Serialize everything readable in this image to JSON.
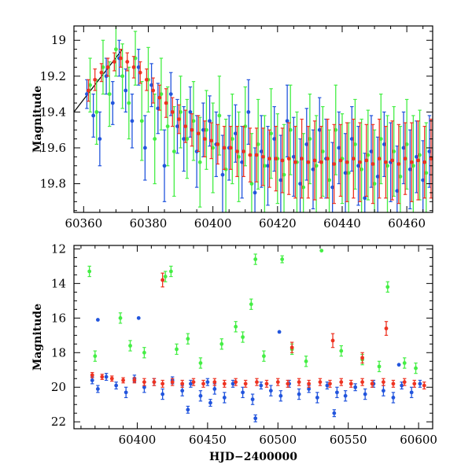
{
  "chart_data": [
    {
      "type": "scatter",
      "panel": "top",
      "xlabel": "",
      "ylabel": "Magnitude",
      "xlim": [
        60357,
        60468
      ],
      "ylim": [
        19.96,
        18.92
      ],
      "y_inverted": true,
      "xticks": [
        60360,
        60380,
        60400,
        60420,
        60440,
        60460
      ],
      "yticks": [
        19,
        19.2,
        19.4,
        19.6,
        19.8
      ],
      "ytick_labels": [
        "19",
        "19.2",
        "19.4",
        "19.6",
        "19.8"
      ],
      "grid": false,
      "legend": "none",
      "model_line": {
        "x": [
          60357,
          60372
        ],
        "y": [
          19.4,
          19.05
        ],
        "color": "#000000"
      },
      "series": [
        {
          "color": "#2255dd",
          "x": [
            60361,
            60363,
            60365,
            60367,
            60369,
            60371,
            60373,
            60375,
            60377,
            60379,
            60381,
            60383,
            60385,
            60387,
            60389,
            60391,
            60393,
            60395,
            60397,
            60399,
            60401,
            60403,
            60405,
            60407,
            60409,
            60411,
            60413,
            60415,
            60417,
            60419,
            60421,
            60423,
            60425,
            60427,
            60429,
            60431,
            60433,
            60435,
            60437,
            60439,
            60441,
            60443,
            60445,
            60447,
            60449,
            60451,
            60453,
            60455,
            60457,
            60459,
            60461,
            60463,
            60465,
            60467
          ],
          "y": [
            19.3,
            19.42,
            19.55,
            19.2,
            19.35,
            19.1,
            19.28,
            19.45,
            19.15,
            19.6,
            19.25,
            19.38,
            19.7,
            19.3,
            19.48,
            19.55,
            19.4,
            19.62,
            19.5,
            19.45,
            19.58,
            19.75,
            19.6,
            19.52,
            19.68,
            19.4,
            19.85,
            19.62,
            19.7,
            19.55,
            19.78,
            19.45,
            19.65,
            19.8,
            19.58,
            19.72,
            19.5,
            19.66,
            19.82,
            19.6,
            19.74,
            19.55,
            19.7,
            19.88,
            19.62,
            19.76,
            19.58,
            19.68,
            19.84,
            19.6,
            19.72,
            19.65,
            19.78,
            19.62
          ],
          "err": [
            0.08,
            0.12,
            0.15,
            0.1,
            0.12,
            0.1,
            0.12,
            0.15,
            0.1,
            0.18,
            0.12,
            0.14,
            0.2,
            0.12,
            0.15,
            0.18,
            0.14,
            0.2,
            0.15,
            0.14,
            0.18,
            0.22,
            0.18,
            0.16,
            0.2,
            0.18,
            0.25,
            0.2,
            0.22,
            0.18,
            0.25,
            0.2,
            0.22,
            0.25,
            0.2,
            0.22,
            0.18,
            0.22,
            0.25,
            0.2,
            0.22,
            0.18,
            0.22,
            0.25,
            0.2,
            0.22,
            0.18,
            0.22,
            0.25,
            0.2,
            0.22,
            0.2,
            0.22,
            0.2
          ]
        },
        {
          "color": "#44ee44",
          "x": [
            60362,
            60364,
            60366,
            60368,
            60370,
            60372,
            60374,
            60376,
            60378,
            60380,
            60382,
            60384,
            60386,
            60388,
            60390,
            60392,
            60394,
            60396,
            60398,
            60400,
            60402,
            60404,
            60406,
            60408,
            60410,
            60412,
            60414,
            60416,
            60418,
            60420,
            60422,
            60424,
            60426,
            60428,
            60430,
            60432,
            60434,
            60436,
            60438,
            60440,
            60442,
            60444,
            60446,
            60448,
            60450,
            60452,
            60454,
            60456,
            60458,
            60460,
            60462,
            60464,
            60466
          ],
          "y": [
            19.25,
            19.4,
            19.15,
            19.3,
            19.05,
            19.2,
            19.35,
            19.1,
            19.45,
            19.22,
            19.55,
            19.3,
            19.48,
            19.62,
            19.4,
            19.55,
            19.45,
            19.68,
            19.5,
            19.6,
            19.42,
            19.72,
            19.55,
            19.65,
            19.48,
            19.8,
            19.58,
            19.7,
            19.52,
            19.66,
            19.75,
            19.5,
            19.68,
            19.82,
            19.55,
            19.7,
            19.62,
            19.78,
            19.5,
            19.66,
            19.74,
            19.58,
            19.72,
            19.64,
            19.8,
            19.55,
            19.7,
            19.62,
            19.76,
            19.58,
            19.7,
            19.64,
            19.74
          ],
          "err": [
            0.15,
            0.18,
            0.15,
            0.18,
            0.15,
            0.18,
            0.2,
            0.15,
            0.22,
            0.18,
            0.25,
            0.2,
            0.22,
            0.25,
            0.2,
            0.22,
            0.22,
            0.25,
            0.22,
            0.25,
            0.22,
            0.28,
            0.25,
            0.25,
            0.22,
            0.28,
            0.25,
            0.28,
            0.25,
            0.25,
            0.28,
            0.25,
            0.28,
            0.3,
            0.25,
            0.28,
            0.25,
            0.28,
            0.25,
            0.25,
            0.28,
            0.25,
            0.28,
            0.25,
            0.3,
            0.25,
            0.28,
            0.25,
            0.28,
            0.25,
            0.28,
            0.25,
            0.28
          ]
        },
        {
          "color": "#ee3322",
          "x": [
            60361.5,
            60363.5,
            60365.5,
            60367.5,
            60369.5,
            60371.5,
            60373.5,
            60375.5,
            60377.5,
            60379.5,
            60381.5,
            60383.5,
            60385.5,
            60387.5,
            60389.5,
            60391.5,
            60393.5,
            60395.5,
            60397.5,
            60399.5,
            60401.5,
            60403.5,
            60405.5,
            60407.5,
            60409.5,
            60411.5,
            60413.5,
            60415.5,
            60417.5,
            60419.5,
            60421.5,
            60423.5,
            60425.5,
            60427.5,
            60429.5,
            60431.5,
            60433.5,
            60435.5,
            60437.5,
            60439.5,
            60441.5,
            60443.5,
            60445.5,
            60447.5,
            60449.5,
            60451.5,
            60453.5,
            60455.5,
            60457.5,
            60459.5,
            60461.5,
            60463.5,
            60465.5,
            60467.5
          ],
          "y": [
            19.28,
            19.22,
            19.18,
            19.15,
            19.12,
            19.1,
            19.12,
            19.15,
            19.18,
            19.22,
            19.28,
            19.32,
            19.35,
            19.4,
            19.44,
            19.48,
            19.5,
            19.52,
            19.55,
            19.56,
            19.58,
            19.6,
            19.6,
            19.62,
            19.62,
            19.64,
            19.64,
            19.65,
            19.66,
            19.66,
            19.67,
            19.66,
            19.68,
            19.66,
            19.68,
            19.67,
            19.68,
            19.66,
            19.69,
            19.67,
            19.68,
            19.66,
            19.68,
            19.67,
            19.69,
            19.66,
            19.68,
            19.67,
            19.69,
            19.66,
            19.68,
            19.67,
            19.68,
            19.66
          ],
          "err": [
            0.06,
            0.06,
            0.05,
            0.05,
            0.05,
            0.05,
            0.05,
            0.06,
            0.06,
            0.06,
            0.07,
            0.07,
            0.08,
            0.08,
            0.08,
            0.09,
            0.09,
            0.1,
            0.1,
            0.1,
            0.11,
            0.12,
            0.12,
            0.14,
            0.14,
            0.15,
            0.15,
            0.16,
            0.16,
            0.18,
            0.18,
            0.2,
            0.2,
            0.22,
            0.2,
            0.22,
            0.2,
            0.22,
            0.22,
            0.2,
            0.22,
            0.22,
            0.22,
            0.2,
            0.22,
            0.22,
            0.2,
            0.22,
            0.22,
            0.2,
            0.22,
            0.22,
            0.2,
            0.22
          ]
        }
      ]
    },
    {
      "type": "scatter",
      "panel": "bottom",
      "xlabel": "HJD−2400000",
      "ylabel": "Magnitude",
      "xlim": [
        60355,
        60610
      ],
      "ylim": [
        22.4,
        11.8
      ],
      "y_inverted": true,
      "xticks": [
        60400,
        60450,
        60500,
        60550,
        60600
      ],
      "yticks": [
        12,
        14,
        16,
        18,
        20,
        22
      ],
      "grid": false,
      "legend": "none",
      "series": [
        {
          "color": "#2255dd",
          "x": [
            60368,
            60372,
            60378,
            60385,
            60392,
            60398,
            60405,
            60412,
            60418,
            60425,
            60432,
            60438,
            60445,
            60450,
            60455,
            60462,
            60468,
            60475,
            60482,
            60488,
            60495,
            60502,
            60508,
            60515,
            60522,
            60528,
            60535,
            60542,
            60548,
            60555,
            60562,
            60568,
            60575,
            60582,
            60588,
            60595,
            60601,
            60372,
            60401,
            60436,
            60452,
            60484,
            60501,
            60540,
            60586
          ],
          "y": [
            19.6,
            20.1,
            19.4,
            19.9,
            20.3,
            19.5,
            20.0,
            19.7,
            20.4,
            19.6,
            20.2,
            19.8,
            20.5,
            19.7,
            20.1,
            20.6,
            19.8,
            20.3,
            20.7,
            19.9,
            20.2,
            20.5,
            19.8,
            20.4,
            20.1,
            20.6,
            19.9,
            20.3,
            20.5,
            20.0,
            20.4,
            19.8,
            20.2,
            20.6,
            19.9,
            20.3,
            19.8,
            16.1,
            16.0,
            21.3,
            20.9,
            21.8,
            16.8,
            21.5,
            18.7
          ],
          "err": [
            0.2,
            0.2,
            0.2,
            0.2,
            0.3,
            0.2,
            0.3,
            0.2,
            0.3,
            0.2,
            0.3,
            0.2,
            0.3,
            0.2,
            0.3,
            0.3,
            0.2,
            0.3,
            0.3,
            0.2,
            0.3,
            0.3,
            0.2,
            0.3,
            0.2,
            0.3,
            0.2,
            0.3,
            0.3,
            0.2,
            0.3,
            0.2,
            0.3,
            0.3,
            0.2,
            0.3,
            0.2,
            0.0,
            0.0,
            0.2,
            0.2,
            0.2,
            0.0,
            0.2,
            0.0
          ]
        },
        {
          "color": "#44ee44",
          "x": [
            60366,
            60388,
            60420,
            60424,
            60436,
            60470,
            60481,
            60484,
            60503,
            60531,
            60578,
            60370,
            60395,
            60405,
            60428,
            60445,
            60460,
            60475,
            60490,
            60510,
            60520,
            60545,
            60560,
            60572,
            60590,
            60598
          ],
          "y": [
            13.3,
            16.0,
            13.6,
            13.3,
            17.2,
            16.5,
            15.2,
            12.6,
            12.6,
            12.1,
            14.2,
            18.2,
            17.6,
            18.0,
            17.8,
            18.6,
            17.5,
            17.1,
            18.2,
            17.8,
            18.5,
            17.9,
            18.4,
            18.8,
            18.6,
            18.9
          ],
          "err": [
            0.3,
            0.3,
            0.3,
            0.3,
            0.3,
            0.3,
            0.3,
            0.3,
            0.2,
            0.0,
            0.3,
            0.3,
            0.3,
            0.3,
            0.3,
            0.3,
            0.3,
            0.3,
            0.3,
            0.3,
            0.3,
            0.3,
            0.3,
            0.3,
            0.3,
            0.3
          ]
        },
        {
          "color": "#ee3322",
          "x": [
            60368,
            60375,
            60382,
            60390,
            60398,
            60405,
            60412,
            60418,
            60425,
            60432,
            60440,
            60447,
            60455,
            60462,
            60470,
            60477,
            60485,
            60492,
            60500,
            60507,
            60515,
            60522,
            60530,
            60537,
            60545,
            60552,
            60560,
            60567,
            60575,
            60582,
            60590,
            60597,
            60604,
            60418,
            60510,
            60539,
            60577,
            60560
          ],
          "y": [
            19.3,
            19.4,
            19.5,
            19.6,
            19.6,
            19.7,
            19.7,
            19.8,
            19.7,
            19.8,
            19.7,
            19.8,
            19.7,
            19.8,
            19.7,
            19.8,
            19.7,
            19.8,
            19.7,
            19.8,
            19.7,
            19.8,
            19.7,
            19.8,
            19.7,
            19.8,
            19.7,
            19.8,
            19.7,
            19.8,
            19.7,
            19.8,
            19.9,
            13.8,
            17.7,
            17.3,
            16.6,
            18.3
          ],
          "err": [
            0.15,
            0.15,
            0.15,
            0.15,
            0.15,
            0.2,
            0.2,
            0.2,
            0.2,
            0.2,
            0.2,
            0.2,
            0.2,
            0.2,
            0.2,
            0.2,
            0.2,
            0.2,
            0.2,
            0.2,
            0.2,
            0.2,
            0.2,
            0.2,
            0.2,
            0.2,
            0.2,
            0.2,
            0.2,
            0.2,
            0.2,
            0.2,
            0.2,
            0.4,
            0.3,
            0.4,
            0.4,
            0.3
          ]
        }
      ]
    }
  ]
}
